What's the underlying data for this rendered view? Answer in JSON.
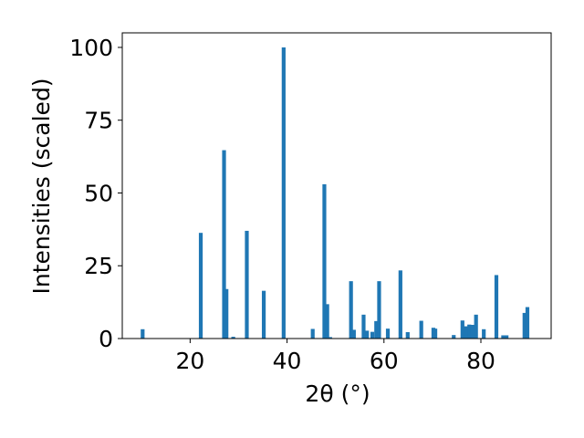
{
  "chart_data": {
    "type": "bar",
    "xlabel": "2θ (°)",
    "ylabel": "Intensities (scaled)",
    "xlim": [
      6,
      94.5
    ],
    "ylim": [
      0,
      105
    ],
    "xticks": [
      20,
      40,
      60,
      80
    ],
    "yticks": [
      0,
      25,
      50,
      75,
      100
    ],
    "xtick_labels": [
      "20",
      "40",
      "60",
      "80"
    ],
    "ytick_labels": [
      "0",
      "25",
      "50",
      "75",
      "100"
    ],
    "bar_color": "#1f77b4",
    "grid": false,
    "bars": [
      {
        "x": 10.2,
        "y": 3.2
      },
      {
        "x": 22.2,
        "y": 36.3
      },
      {
        "x": 27.0,
        "y": 64.7
      },
      {
        "x": 27.5,
        "y": 17.0
      },
      {
        "x": 28.9,
        "y": 0.6
      },
      {
        "x": 31.7,
        "y": 37.0
      },
      {
        "x": 35.2,
        "y": 16.4
      },
      {
        "x": 39.3,
        "y": 100.0
      },
      {
        "x": 45.3,
        "y": 3.3
      },
      {
        "x": 47.7,
        "y": 53.0
      },
      {
        "x": 48.3,
        "y": 11.8
      },
      {
        "x": 48.9,
        "y": 0.5
      },
      {
        "x": 53.2,
        "y": 19.7
      },
      {
        "x": 53.8,
        "y": 3.0
      },
      {
        "x": 55.8,
        "y": 8.2
      },
      {
        "x": 56.5,
        "y": 2.7
      },
      {
        "x": 57.6,
        "y": 2.3
      },
      {
        "x": 58.4,
        "y": 6.0
      },
      {
        "x": 59.0,
        "y": 19.7
      },
      {
        "x": 60.8,
        "y": 3.4
      },
      {
        "x": 63.4,
        "y": 23.4
      },
      {
        "x": 64.9,
        "y": 2.2
      },
      {
        "x": 67.7,
        "y": 6.1
      },
      {
        "x": 70.2,
        "y": 3.7
      },
      {
        "x": 70.6,
        "y": 3.4
      },
      {
        "x": 74.4,
        "y": 1.2
      },
      {
        "x": 76.2,
        "y": 6.2
      },
      {
        "x": 76.9,
        "y": 4.2
      },
      {
        "x": 77.6,
        "y": 4.8
      },
      {
        "x": 78.3,
        "y": 4.7
      },
      {
        "x": 79.0,
        "y": 8.2
      },
      {
        "x": 80.6,
        "y": 3.2
      },
      {
        "x": 83.2,
        "y": 21.8
      },
      {
        "x": 84.6,
        "y": 1.1
      },
      {
        "x": 85.3,
        "y": 1.1
      },
      {
        "x": 89.0,
        "y": 8.8
      },
      {
        "x": 89.6,
        "y": 10.8
      }
    ]
  }
}
